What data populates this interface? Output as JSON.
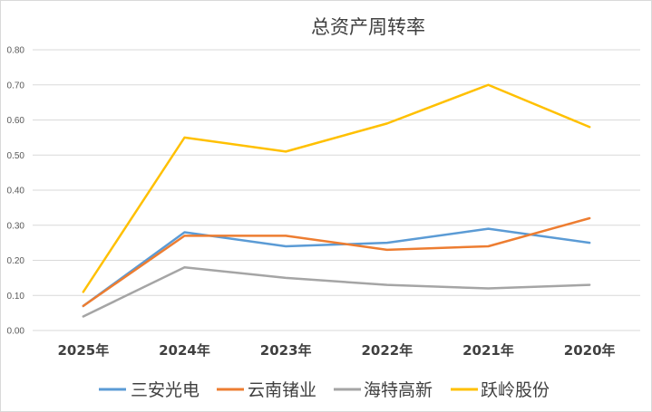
{
  "chart_data": {
    "type": "line",
    "title": "总资产周转率",
    "xlabel": "",
    "ylabel": "",
    "categories": [
      "2025年",
      "2024年",
      "2023年",
      "2022年",
      "2021年",
      "2020年"
    ],
    "ylim": [
      0,
      0.8
    ],
    "yticks": [
      "0.00",
      "0.10",
      "0.20",
      "0.30",
      "0.40",
      "0.50",
      "0.60",
      "0.70",
      "0.80"
    ],
    "grid": true,
    "legend_position": "bottom",
    "series": [
      {
        "name": "三安光电",
        "color": "#5b9bd5",
        "values": [
          0.07,
          0.28,
          0.24,
          0.25,
          0.29,
          0.25
        ]
      },
      {
        "name": "云南锗业",
        "color": "#ed7d31",
        "values": [
          0.07,
          0.27,
          0.27,
          0.23,
          0.24,
          0.32
        ]
      },
      {
        "name": "海特高新",
        "color": "#a5a5a5",
        "values": [
          0.04,
          0.18,
          0.15,
          0.13,
          0.12,
          0.13
        ]
      },
      {
        "name": "跃岭股份",
        "color": "#ffc000",
        "values": [
          0.11,
          0.55,
          0.51,
          0.59,
          0.7,
          0.58
        ]
      }
    ]
  }
}
